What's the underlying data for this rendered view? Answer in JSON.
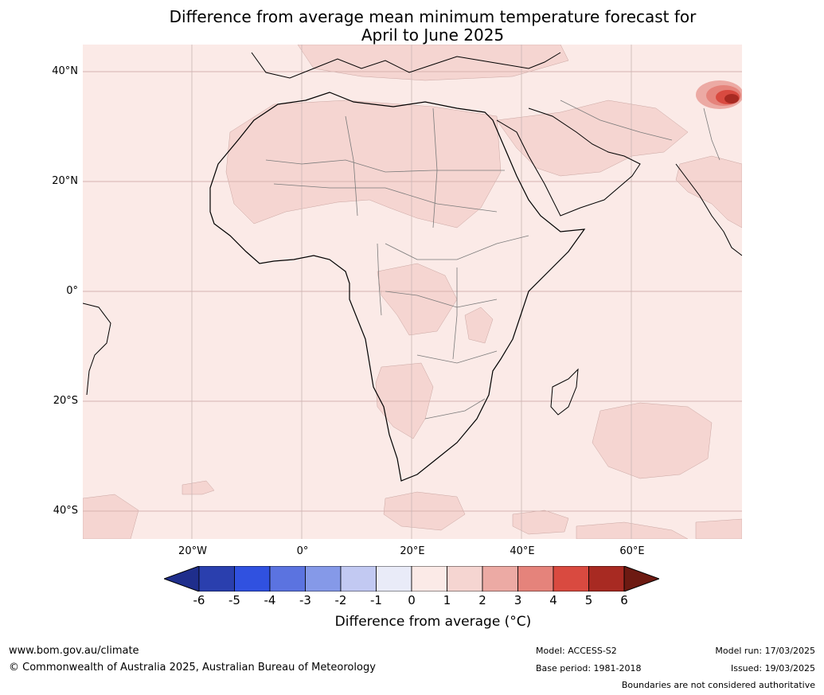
{
  "title": {
    "line1": "Difference from average mean minimum temperature forecast for",
    "line2": "April to June 2025"
  },
  "map": {
    "lat_labels": [
      "40°N",
      "20°N",
      "0°",
      "20°S",
      "40°S"
    ],
    "lon_labels": [
      "20°W",
      "0°",
      "20°E",
      "40°E",
      "60°E"
    ],
    "background_color": "#fbeae7",
    "anomaly_color_1_2": "#f5d5d1",
    "hotspot_color": "#a82a22"
  },
  "colorbar": {
    "ticks": [
      "-6",
      "-5",
      "-4",
      "-3",
      "-2",
      "-1",
      "0",
      "1",
      "2",
      "3",
      "4",
      "5",
      "6"
    ],
    "colors": [
      "#1f2e8c",
      "#2a3fae",
      "#3051e0",
      "#5b73e0",
      "#8599e8",
      "#c2c9f2",
      "#e9ebf8",
      "#fbeae7",
      "#f5d5d1",
      "#ecaaa4",
      "#e5837b",
      "#d94a40",
      "#a82a22",
      "#6d1a12"
    ],
    "label": "Difference from average (°C)"
  },
  "footer": {
    "website": "www.bom.gov.au/climate",
    "copyright": "© Commonwealth of Australia 2025, Australian Bureau of Meteorology",
    "model": "Model: ACCESS-S2",
    "base_period": "Base period: 1981-2018",
    "model_run": "Model run: 17/03/2025",
    "issued": "Issued: 19/03/2025",
    "disclaimer": "Boundaries are not considered authoritative"
  }
}
